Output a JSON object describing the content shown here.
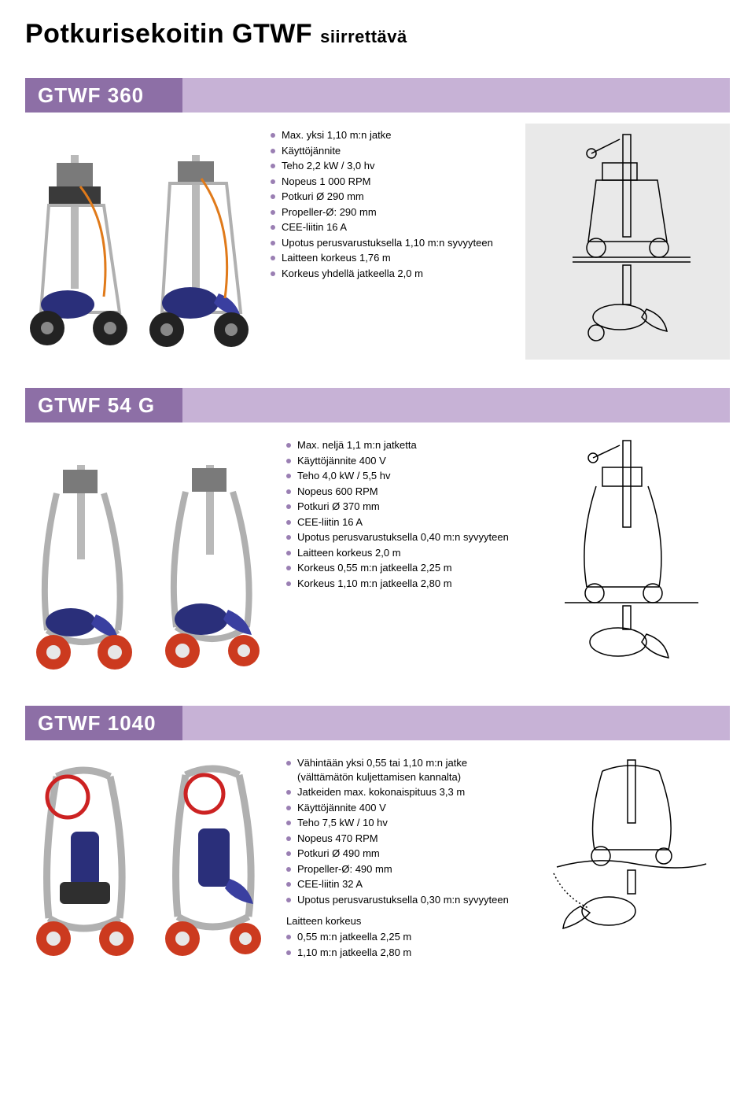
{
  "colors": {
    "band_dark": "#8d6fa6",
    "band_light": "#c7b2d6",
    "bullet": "#9a7fb3",
    "diagram_bg": "#e9e9e9",
    "page_bg": "#ffffff",
    "text": "#000000"
  },
  "page_title_main": "Potkurisekoitin GTWF",
  "page_title_sub": "siirrettävä",
  "sections": [
    {
      "label": "GTWF 360",
      "specs": [
        "Max. yksi 1,10 m:n jatke",
        "Käyttöjännite",
        "Teho 2,2 kW / 3,0 hv",
        "Nopeus 1 000 RPM",
        "Potkuri Ø 290 mm",
        "Propeller-Ø: 290 mm",
        "CEE-liitin 16 A",
        "Upotus perusvarustuksella 1,10 m:n syvyyteen",
        "Laitteen korkeus 1,76 m",
        "Korkeus yhdellä jatkeella 2,0 m"
      ]
    },
    {
      "label": "GTWF 54 G",
      "specs": [
        "Max. neljä 1,1 m:n jatketta",
        "Käyttöjännite 400 V",
        "Teho 4,0 kW / 5,5 hv",
        "Nopeus 600 RPM",
        "Potkuri Ø 370 mm",
        "CEE-liitin 16 A",
        "Upotus perusvarustuksella 0,40 m:n syvyyteen",
        "Laitteen korkeus 2,0 m",
        "Korkeus 0,55 m:n jatkeella 2,25 m",
        "Korkeus 1,10 m:n jatkeella 2,80 m"
      ]
    },
    {
      "label": "GTWF 1040",
      "specs": [
        "Vähintään yksi 0,55 tai 1,10 m:n jatke (välttämätön kuljettamisen kannalta)",
        "Jatkeiden max. kokonaispituus 3,3 m",
        "Käyttöjännite 400 V",
        "Teho 7,5 kW / 10 hv",
        "Nopeus 470 RPM",
        "Potkuri Ø 490 mm",
        "Propeller-Ø: 490 mm",
        "CEE-liitin 32 A",
        "Upotus perusvarustuksella 0,30 m:n syvyyteen"
      ],
      "subhead": "Laitteen korkeus",
      "specs2": [
        "0,55 m:n jatkeella 2,25 m",
        "1,10 m:n jatkeella 2,80 m"
      ]
    }
  ]
}
